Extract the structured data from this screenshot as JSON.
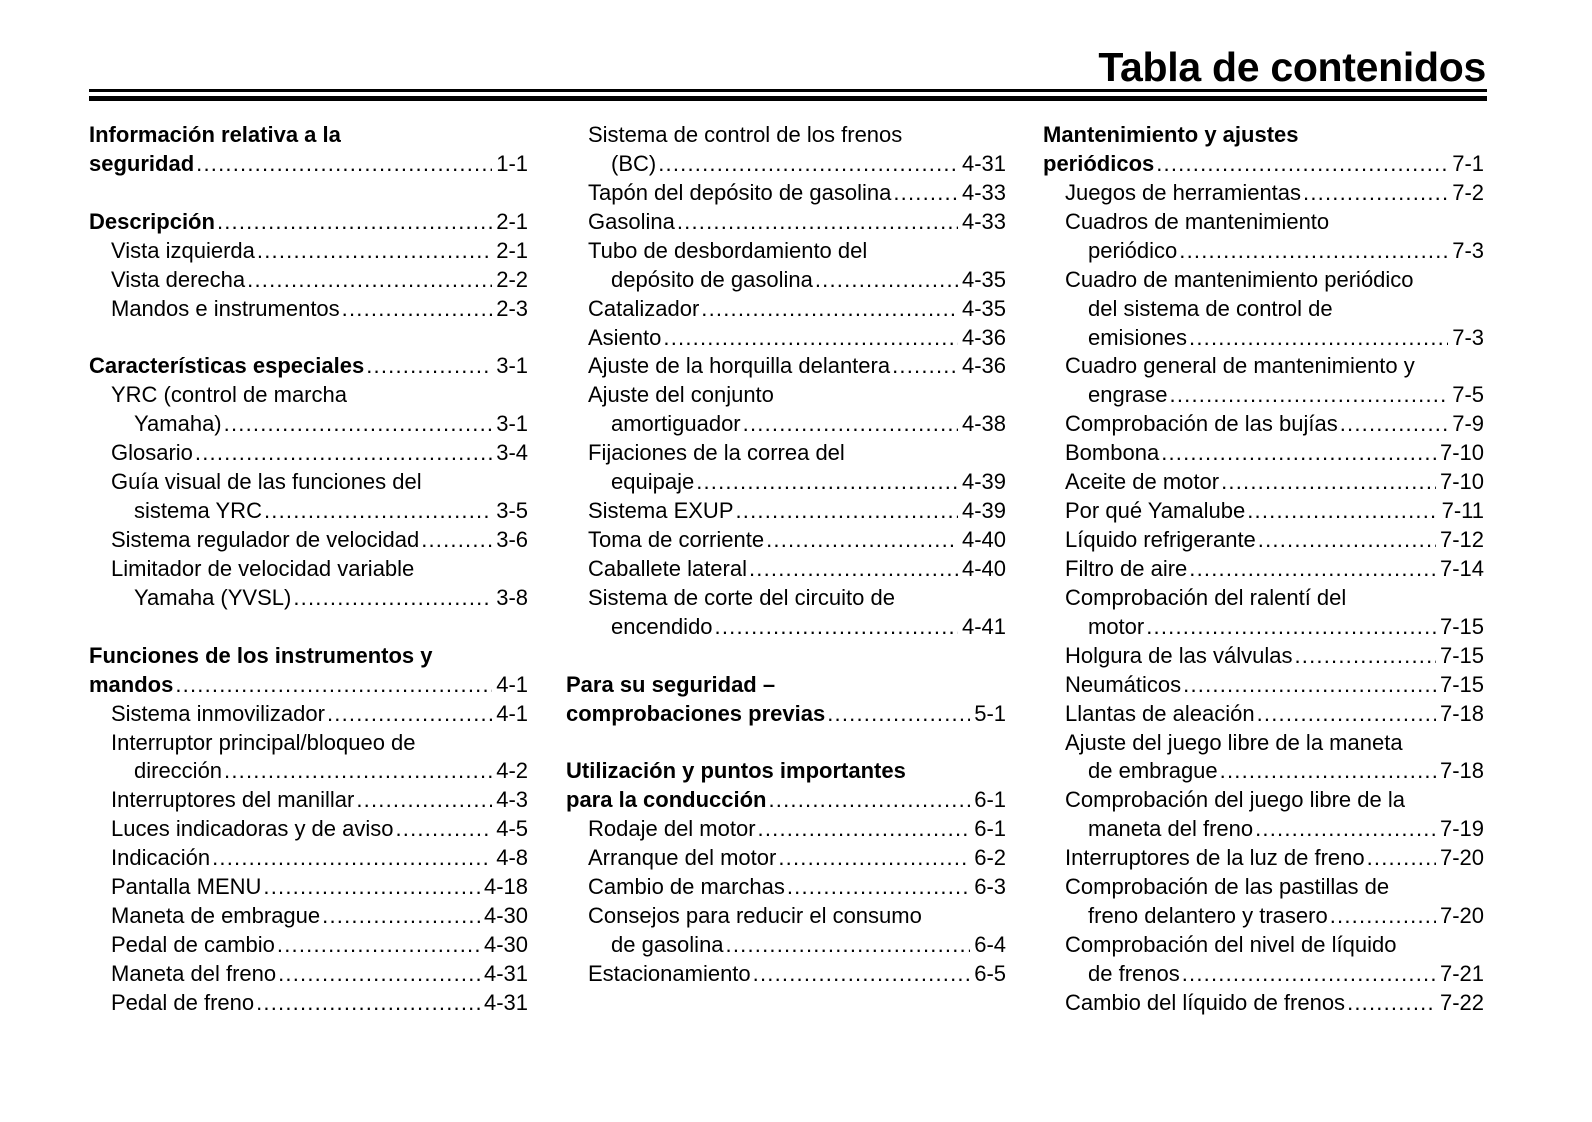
{
  "title": "Tabla de contenidos",
  "columns": [
    {
      "id": "col-1",
      "rows": [
        {
          "level": "h",
          "text": "Información relativa a la"
        },
        {
          "level": "h",
          "text": "seguridad",
          "page": "1-1"
        },
        {},
        {
          "level": "h",
          "text": "Descripción",
          "page": "2-1"
        },
        {
          "level": "s",
          "text": "Vista izquierda",
          "page": "2-1"
        },
        {
          "level": "s",
          "text": "Vista derecha",
          "page": "2-2"
        },
        {
          "level": "s",
          "text": "Mandos e instrumentos",
          "page": "2-3"
        },
        {},
        {
          "level": "h",
          "text": "Características especiales",
          "page": "3-1"
        },
        {
          "level": "s",
          "text": "YRC (control de marcha"
        },
        {
          "level": "c",
          "text": "Yamaha)",
          "page": "3-1"
        },
        {
          "level": "s",
          "text": "Glosario",
          "page": "3-4"
        },
        {
          "level": "s",
          "text": "Guía visual de las funciones del"
        },
        {
          "level": "c",
          "text": "sistema YRC",
          "page": "3-5"
        },
        {
          "level": "s",
          "text": "Sistema regulador de velocidad",
          "page": "3-6"
        },
        {
          "level": "s",
          "text": "Limitador de velocidad variable"
        },
        {
          "level": "c",
          "text": "Yamaha (YVSL)",
          "page": "3-8"
        },
        {},
        {
          "level": "h",
          "text": "Funciones de los instrumentos y"
        },
        {
          "level": "h",
          "text": "mandos",
          "page": "4-1"
        },
        {
          "level": "s",
          "text": "Sistema inmovilizador",
          "page": "4-1"
        },
        {
          "level": "s",
          "text": "Interruptor principal/bloqueo de"
        },
        {
          "level": "c",
          "text": "dirección",
          "page": "4-2"
        },
        {
          "level": "s",
          "text": "Interruptores del manillar",
          "page": "4-3"
        },
        {
          "level": "s",
          "text": "Luces indicadoras y de aviso",
          "page": "4-5"
        },
        {
          "level": "s",
          "text": "Indicación",
          "page": "4-8"
        },
        {
          "level": "s",
          "text": "Pantalla MENU",
          "page": "4-18"
        },
        {
          "level": "s",
          "text": "Maneta de embrague",
          "page": "4-30"
        },
        {
          "level": "s",
          "text": "Pedal de cambio",
          "page": "4-30"
        },
        {
          "level": "s",
          "text": "Maneta del freno",
          "page": "4-31"
        },
        {
          "level": "s",
          "text": "Pedal de freno",
          "page": "4-31"
        }
      ]
    },
    {
      "id": "col-2",
      "rows": [
        {
          "level": "s",
          "text": "Sistema de control de los frenos"
        },
        {
          "level": "c",
          "text": "(BC)",
          "page": "4-31"
        },
        {
          "level": "s",
          "text": "Tapón del depósito de gasolina",
          "page": "4-33"
        },
        {
          "level": "s",
          "text": "Gasolina",
          "page": "4-33"
        },
        {
          "level": "s",
          "text": "Tubo de desbordamiento del"
        },
        {
          "level": "c",
          "text": "depósito de gasolina",
          "page": "4-35"
        },
        {
          "level": "s",
          "text": "Catalizador",
          "page": "4-35"
        },
        {
          "level": "s",
          "text": "Asiento",
          "page": "4-36"
        },
        {
          "level": "s",
          "text": "Ajuste de la horquilla delantera",
          "page": "4-36"
        },
        {
          "level": "s",
          "text": "Ajuste del conjunto"
        },
        {
          "level": "c",
          "text": "amortiguador",
          "page": "4-38"
        },
        {
          "level": "s",
          "text": "Fijaciones de la correa del"
        },
        {
          "level": "c",
          "text": "equipaje",
          "page": "4-39"
        },
        {
          "level": "s",
          "text": "Sistema EXUP",
          "page": "4-39"
        },
        {
          "level": "s",
          "text": "Toma de corriente",
          "page": "4-40"
        },
        {
          "level": "s",
          "text": "Caballete lateral",
          "page": "4-40"
        },
        {
          "level": "s",
          "text": "Sistema de corte del circuito de"
        },
        {
          "level": "c",
          "text": "encendido",
          "page": "4-41"
        },
        {},
        {
          "level": "h",
          "text": "Para su seguridad –"
        },
        {
          "level": "h",
          "text": "comprobaciones previas",
          "page": "5-1"
        },
        {},
        {
          "level": "h",
          "text": "Utilización y puntos importantes"
        },
        {
          "level": "h",
          "text": "para la conducción",
          "page": "6-1"
        },
        {
          "level": "s",
          "text": "Rodaje del motor",
          "page": "6-1"
        },
        {
          "level": "s",
          "text": "Arranque del motor",
          "page": "6-2"
        },
        {
          "level": "s",
          "text": "Cambio de marchas",
          "page": "6-3"
        },
        {
          "level": "s",
          "text": "Consejos para reducir el consumo"
        },
        {
          "level": "c",
          "text": "de gasolina",
          "page": "6-4"
        },
        {
          "level": "s",
          "text": "Estacionamiento",
          "page": "6-5"
        }
      ]
    },
    {
      "id": "col-3",
      "rows": [
        {
          "level": "h",
          "text": "Mantenimiento y ajustes"
        },
        {
          "level": "h",
          "text": "periódicos",
          "page": "7-1"
        },
        {
          "level": "s",
          "text": "Juegos de herramientas",
          "page": "7-2"
        },
        {
          "level": "s",
          "text": "Cuadros de mantenimiento"
        },
        {
          "level": "c",
          "text": "periódico",
          "page": "7-3"
        },
        {
          "level": "s",
          "text": "Cuadro de mantenimiento periódico"
        },
        {
          "level": "c",
          "text": "del sistema de control de"
        },
        {
          "level": "c",
          "text": "emisiones",
          "page": "7-3"
        },
        {
          "level": "s",
          "text": "Cuadro general de mantenimiento y"
        },
        {
          "level": "c",
          "text": "engrase",
          "page": "7-5"
        },
        {
          "level": "s",
          "text": "Comprobación de las bujías",
          "page": "7-9"
        },
        {
          "level": "s",
          "text": "Bombona",
          "page": "7-10"
        },
        {
          "level": "s",
          "text": "Aceite de motor",
          "page": "7-10"
        },
        {
          "level": "s",
          "text": "Por qué Yamalube",
          "page": "7-11"
        },
        {
          "level": "s",
          "text": "Líquido refrigerante",
          "page": "7-12"
        },
        {
          "level": "s",
          "text": "Filtro de aire",
          "page": "7-14"
        },
        {
          "level": "s",
          "text": "Comprobación del ralentí del"
        },
        {
          "level": "c",
          "text": "motor",
          "page": "7-15"
        },
        {
          "level": "s",
          "text": "Holgura de las válvulas",
          "page": "7-15"
        },
        {
          "level": "s",
          "text": "Neumáticos",
          "page": "7-15"
        },
        {
          "level": "s",
          "text": "Llantas de aleación",
          "page": "7-18"
        },
        {
          "level": "s",
          "text": "Ajuste del juego libre de la maneta"
        },
        {
          "level": "c",
          "text": "de embrague",
          "page": "7-18"
        },
        {
          "level": "s",
          "text": "Comprobación del juego libre de la"
        },
        {
          "level": "c",
          "text": "maneta del freno",
          "page": "7-19"
        },
        {
          "level": "s",
          "text": "Interruptores de la luz de freno",
          "page": "7-20"
        },
        {
          "level": "s",
          "text": "Comprobación de las pastillas de"
        },
        {
          "level": "c",
          "text": "freno delantero y trasero",
          "page": "7-20"
        },
        {
          "level": "s",
          "text": "Comprobación del nivel de líquido"
        },
        {
          "level": "c",
          "text": "de frenos",
          "page": "7-21"
        },
        {
          "level": "s",
          "text": "Cambio del líquido de frenos",
          "page": "7-22"
        }
      ]
    }
  ]
}
